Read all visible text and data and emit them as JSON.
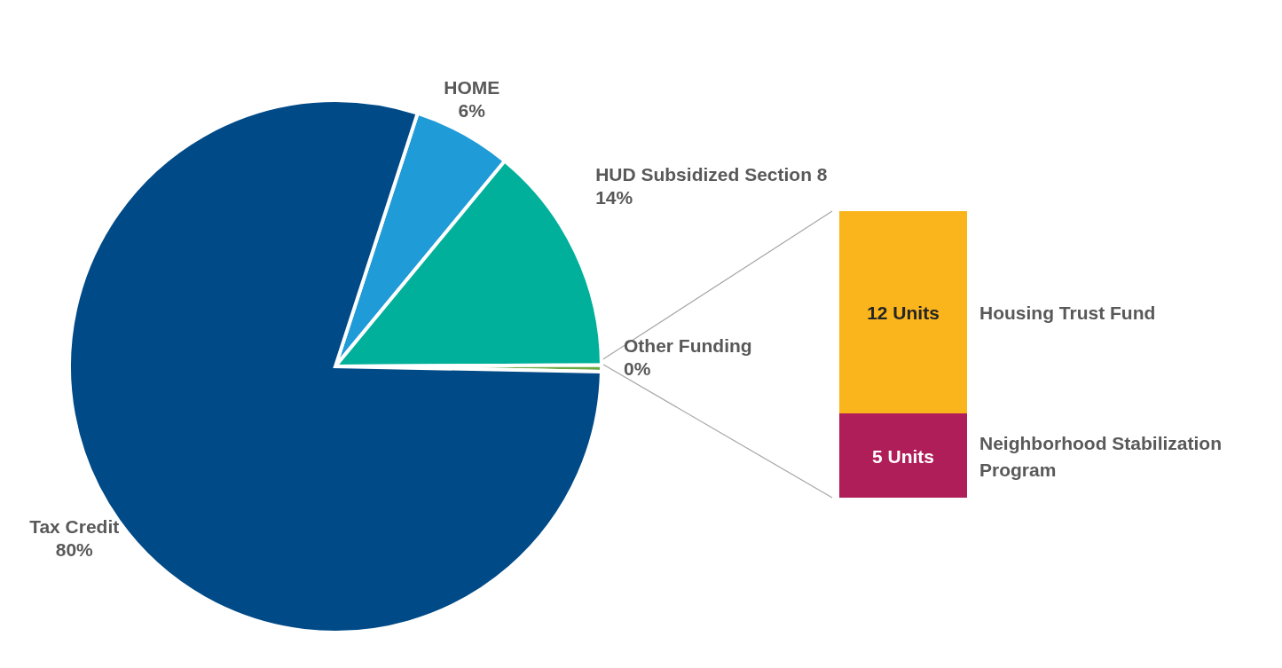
{
  "chart_data": [
    {
      "type": "pie",
      "categories": [
        "HOME",
        "HUD Subsidized Section 8",
        "Other Funding",
        "Tax Credit"
      ],
      "values": [
        6,
        14,
        0.4,
        80
      ],
      "colors": [
        "#1f9bd7",
        "#00b09b",
        "#6aa842",
        "#004a87"
      ],
      "value_labels": [
        "6%",
        "14%",
        "0%",
        "80%"
      ],
      "legend": false
    },
    {
      "type": "bar",
      "stacked": true,
      "tick_labels": false,
      "legend": false,
      "categories": [
        null
      ],
      "series": [
        {
          "name": "Neighborhood Stabilization Program",
          "color": "#b01e5a",
          "values": [
            5
          ],
          "value_labels": [
            "5 Units"
          ]
        },
        {
          "name": "Housing Trust Fund",
          "color": "#fbb51c",
          "values": [
            12
          ],
          "value_labels": [
            "12 Units"
          ]
        }
      ]
    }
  ]
}
